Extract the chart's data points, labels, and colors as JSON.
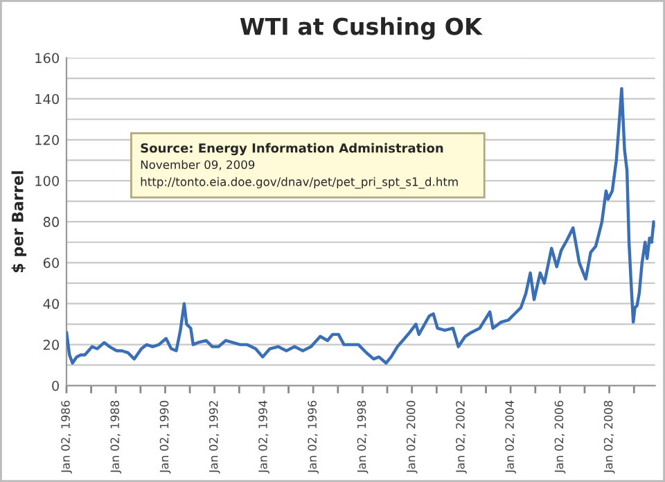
{
  "chart_data": {
    "type": "line",
    "title": "WTI at Cushing OK",
    "ylabel": "$ per Barrel",
    "annotations": [
      "Source: Energy Information Administration",
      "November 09, 2009",
      "http://tonto.eia.doe.gov/dnav/pet/pet_pri_spt_s1_d.htm"
    ],
    "x": [
      "1986-01-02",
      "1986-02-15",
      "1986-04-01",
      "1986-06-01",
      "1986-08-01",
      "1986-10-01",
      "1987-01-15",
      "1987-04-01",
      "1987-07-15",
      "1987-10-01",
      "1988-01-15",
      "1988-04-01",
      "1988-07-01",
      "1988-10-01",
      "1989-01-15",
      "1989-04-01",
      "1989-07-01",
      "1989-10-01",
      "1990-01-15",
      "1990-04-01",
      "1990-06-15",
      "1990-08-15",
      "1990-10-10",
      "1990-11-15",
      "1991-01-15",
      "1991-02-20",
      "1991-05-01",
      "1991-09-01",
      "1991-12-01",
      "1992-03-01",
      "1992-06-15",
      "1992-10-01",
      "1993-01-15",
      "1993-05-01",
      "1993-09-01",
      "1993-12-15",
      "1994-04-01",
      "1994-08-01",
      "1994-12-01",
      "1995-04-01",
      "1995-08-01",
      "1995-12-01",
      "1996-04-15",
      "1996-08-01",
      "1996-10-15",
      "1997-01-10",
      "1997-04-01",
      "1997-08-01",
      "1997-11-01",
      "1998-03-01",
      "1998-06-15",
      "1998-09-01",
      "1998-12-15",
      "1999-03-01",
      "1999-06-01",
      "1999-09-15",
      "1999-12-01",
      "2000-03-01",
      "2000-04-15",
      "2000-09-15",
      "2000-11-15",
      "2001-01-15",
      "2001-05-01",
      "2001-09-01",
      "2001-11-20",
      "2002-03-01",
      "2002-06-01",
      "2002-10-01",
      "2003-03-01",
      "2003-04-15",
      "2003-08-15",
      "2003-12-01",
      "2004-03-01",
      "2004-06-01",
      "2004-08-15",
      "2004-10-20",
      "2004-12-15",
      "2005-03-15",
      "2005-05-15",
      "2005-08-30",
      "2005-11-15",
      "2006-01-20",
      "2006-04-15",
      "2006-07-15",
      "2006-10-15",
      "2007-01-18",
      "2007-04-01",
      "2007-06-15",
      "2007-08-01",
      "2007-09-15",
      "2007-11-15",
      "2007-12-15",
      "2008-02-15",
      "2008-04-15",
      "2008-05-20",
      "2008-07-03",
      "2008-08-15",
      "2008-09-20",
      "2008-10-20",
      "2008-11-20",
      "2008-12-22",
      "2009-01-15",
      "2009-02-15",
      "2009-03-20",
      "2009-05-01",
      "2009-06-15",
      "2009-07-15",
      "2009-08-20",
      "2009-09-20",
      "2009-10-20",
      "2009-11-09"
    ],
    "values": [
      26,
      15,
      11,
      14,
      15,
      15,
      19,
      18,
      21,
      19,
      17,
      17,
      16,
      13,
      18,
      20,
      19,
      20,
      23,
      18,
      17,
      27,
      40,
      30,
      28,
      20,
      21,
      22,
      19,
      19,
      22,
      21,
      20,
      20,
      18,
      14,
      18,
      19,
      17,
      19,
      17,
      19,
      24,
      22,
      25,
      25,
      20,
      20,
      20,
      16,
      13,
      14,
      11,
      14,
      19,
      23,
      26,
      30,
      25,
      34,
      35,
      28,
      27,
      28,
      19,
      24,
      26,
      28,
      36,
      28,
      31,
      32,
      35,
      38,
      45,
      55,
      42,
      55,
      50,
      67,
      58,
      66,
      71,
      77,
      60,
      52,
      65,
      68,
      74,
      80,
      95,
      91,
      95,
      110,
      125,
      145,
      115,
      105,
      70,
      50,
      31,
      38,
      39,
      45,
      60,
      70,
      62,
      72,
      70,
      80,
      78
    ],
    "color": "#3a6fb5",
    "xlim": [
      "1986-01-02",
      "2009-11-09"
    ],
    "xticks": [
      {
        "value": "1986-01-02",
        "label": "Jan 02, 1986"
      },
      {
        "value": "1987-01-02",
        "label": null
      },
      {
        "value": "1988-01-02",
        "label": "Jan 02, 1988"
      },
      {
        "value": "1989-01-02",
        "label": null
      },
      {
        "value": "1990-01-02",
        "label": "Jan 02, 1990"
      },
      {
        "value": "1991-01-02",
        "label": null
      },
      {
        "value": "1992-01-02",
        "label": "Jan 02, 1992"
      },
      {
        "value": "1993-01-02",
        "label": null
      },
      {
        "value": "1994-01-02",
        "label": "Jan 02, 1994"
      },
      {
        "value": "1995-01-02",
        "label": null
      },
      {
        "value": "1996-01-02",
        "label": "Jan 02, 1996"
      },
      {
        "value": "1997-01-02",
        "label": null
      },
      {
        "value": "1998-01-02",
        "label": "Jan 02, 1998"
      },
      {
        "value": "1999-01-02",
        "label": null
      },
      {
        "value": "2000-01-02",
        "label": "Jan 02, 2000"
      },
      {
        "value": "2001-01-02",
        "label": null
      },
      {
        "value": "2002-01-02",
        "label": "Jan 02, 2002"
      },
      {
        "value": "2003-01-02",
        "label": null
      },
      {
        "value": "2004-01-02",
        "label": "Jan 02, 2004"
      },
      {
        "value": "2005-01-02",
        "label": null
      },
      {
        "value": "2006-01-02",
        "label": "Jan 02, 2006"
      },
      {
        "value": "2007-01-02",
        "label": null
      },
      {
        "value": "2008-01-02",
        "label": "Jan 02, 2008"
      },
      {
        "value": "2009-01-02",
        "label": null
      }
    ],
    "ylim": [
      0,
      160
    ],
    "yticks": [
      0,
      {
        "value": 10,
        "label": null
      },
      20,
      {
        "value": 30,
        "label": null
      },
      40,
      {
        "value": 50,
        "label": null
      },
      60,
      {
        "value": 70,
        "label": null
      },
      80,
      {
        "value": 90,
        "label": null
      },
      100,
      {
        "value": 110,
        "label": null
      },
      120,
      {
        "value": 130,
        "label": null
      },
      140,
      {
        "value": 150,
        "label": null
      },
      160
    ],
    "grid": "y",
    "legend": false,
    "marker": "none",
    "line_style": "solid"
  }
}
